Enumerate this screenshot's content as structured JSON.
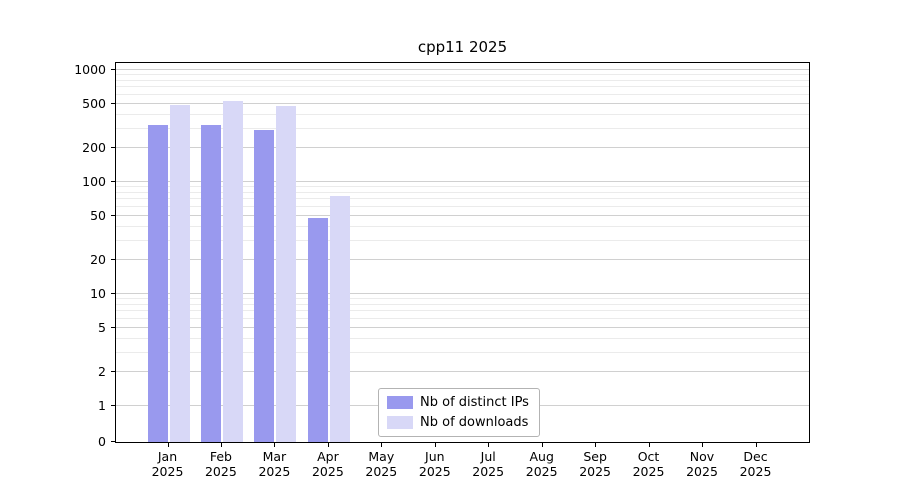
{
  "chart_data": {
    "type": "bar",
    "title": "cpp11 2025",
    "categories": [
      "Jan 2025",
      "Feb 2025",
      "Mar 2025",
      "Apr 2025",
      "May 2025",
      "Jun 2025",
      "Jul 2025",
      "Aug 2025",
      "Sep 2025",
      "Oct 2025",
      "Nov 2025",
      "Dec 2025"
    ],
    "series": [
      {
        "name": "Nb of distinct IPs",
        "color": "#9999ee",
        "values": [
          320,
          320,
          290,
          48,
          0,
          0,
          0,
          0,
          0,
          0,
          0,
          0
        ]
      },
      {
        "name": "Nb of downloads",
        "color": "#d8d8f7",
        "values": [
          490,
          530,
          480,
          75,
          0,
          0,
          0,
          0,
          0,
          0,
          0,
          0
        ]
      }
    ],
    "yscale": "symlog",
    "yticks": [
      0,
      1,
      2,
      5,
      10,
      20,
      50,
      100,
      200,
      500,
      1000
    ],
    "ylim": [
      0,
      1100
    ],
    "xlabel": "",
    "ylabel": "",
    "grid": "on",
    "legend_position": "lower center inside"
  }
}
